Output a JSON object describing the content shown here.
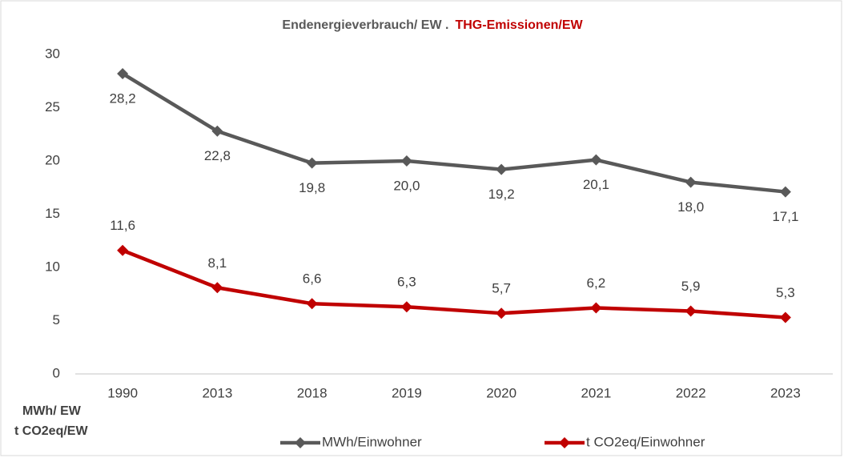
{
  "chart_data": {
    "type": "line",
    "title": [
      {
        "text": "Endenergieverbrauch/ EW  .",
        "color": "#595959"
      },
      {
        "text": "THG-Emissionen/EW",
        "color": "#c00000"
      }
    ],
    "ylabel": [
      {
        "text": "MWh/ EW",
        "color": "#595959"
      },
      {
        "text": "t CO2eq/EW",
        "color": "#c00000"
      }
    ],
    "categories": [
      "1990",
      "2013",
      "2018",
      "2019",
      "2020",
      "2021",
      "2022",
      "2023"
    ],
    "series": [
      {
        "name": "MWh/Einwohner",
        "color": "#595959",
        "label_position": "below",
        "values": [
          28.2,
          22.8,
          19.8,
          20.0,
          19.2,
          20.1,
          18.0,
          17.1
        ],
        "value_labels": [
          "28,2",
          "22,8",
          "19,8",
          "20,0",
          "19,2",
          "20,1",
          "18,0",
          "17,1"
        ]
      },
      {
        "name": "t CO2eq/Einwohner",
        "color": "#c00000",
        "label_position": "above",
        "values": [
          11.6,
          8.1,
          6.6,
          6.3,
          5.7,
          6.2,
          5.9,
          5.3
        ],
        "value_labels": [
          "11,6",
          "8,1",
          "6,6",
          "6,3",
          "5,7",
          "6,2",
          "5,9",
          "5,3"
        ]
      }
    ],
    "ylim": [
      0,
      30
    ],
    "yticks": [
      0,
      5,
      10,
      15,
      20,
      25,
      30
    ],
    "grid": false,
    "legend": "bottom"
  }
}
